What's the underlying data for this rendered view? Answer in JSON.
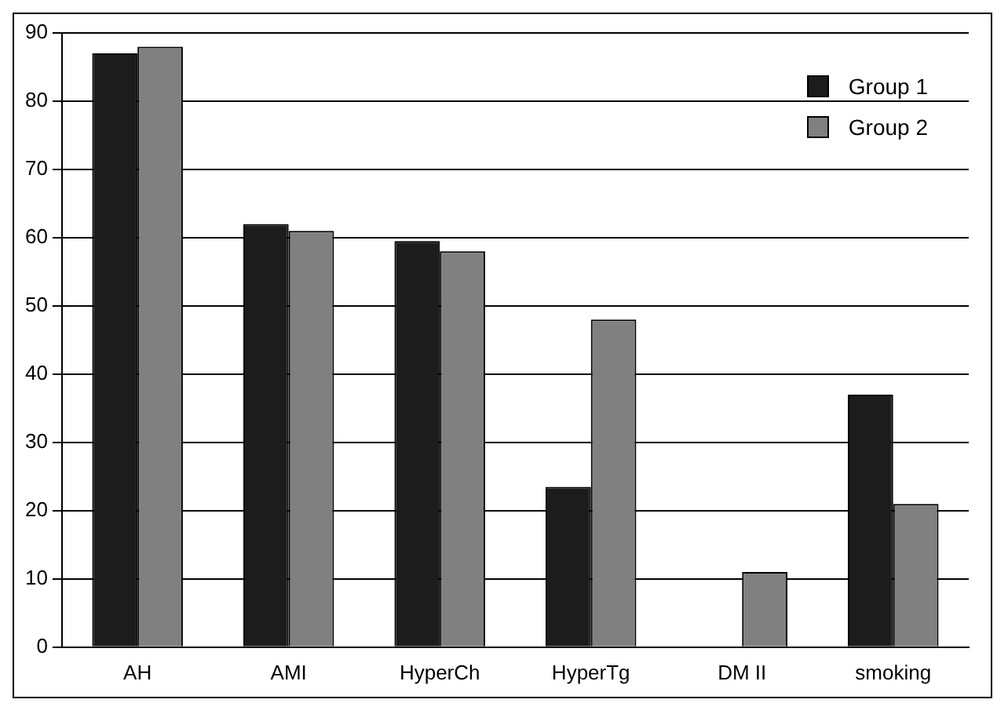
{
  "chart_data": {
    "type": "bar",
    "categories": [
      "AH",
      "AMI",
      "HyperCh",
      "HyperTg",
      "DM II",
      "smoking"
    ],
    "series": [
      {
        "name": "Group 1",
        "color": "#1c1c1c",
        "values": [
          87,
          62,
          59.5,
          23.5,
          0,
          37
        ]
      },
      {
        "name": "Group 2",
        "color": "#808080",
        "values": [
          88,
          61,
          58,
          48,
          11,
          21
        ]
      }
    ],
    "ylim": [
      0,
      90
    ],
    "yticks": [
      0,
      10,
      20,
      30,
      40,
      50,
      60,
      70,
      80,
      90
    ],
    "grid": "y",
    "legend": "top right"
  }
}
